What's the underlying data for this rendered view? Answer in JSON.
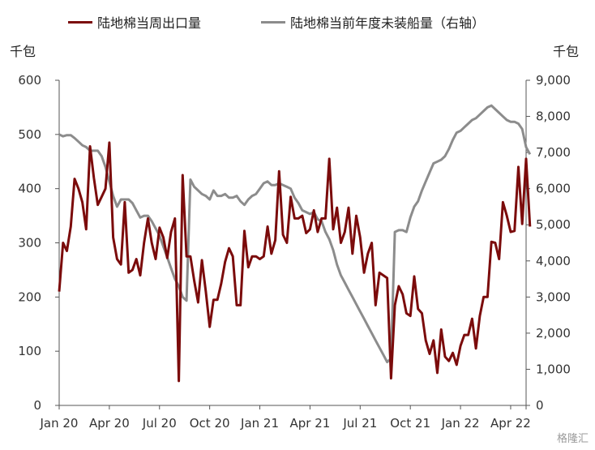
{
  "legend": {
    "series1": "陆地棉当周出口量",
    "series2": "陆地棉当前年度未装船量（右轴）"
  },
  "units": {
    "left": "千包",
    "right": "千包"
  },
  "watermark": "格隆汇",
  "colors": {
    "series1": "#7b0b0b",
    "series2": "#8c8c8c",
    "axis": "#555555"
  },
  "chart_data": {
    "type": "line",
    "x_ticks": [
      "Jan 20",
      "Apr 20",
      "Jul 20",
      "Oct 20",
      "Jan 21",
      "Apr 21",
      "Jul 21",
      "Oct 21",
      "Jan 22",
      "Apr 22"
    ],
    "x_range": [
      0,
      121
    ],
    "y_left": {
      "range": [
        0,
        600
      ],
      "ticks": [
        "0",
        "100",
        "200",
        "300",
        "400",
        "500",
        "600"
      ]
    },
    "y_right": {
      "range": [
        0,
        9000
      ],
      "ticks": [
        "0",
        "1,000",
        "2,000",
        "3,000",
        "4,000",
        "5,000",
        "6,000",
        "7,000",
        "8,000",
        "9,000"
      ]
    },
    "series": [
      {
        "name": "陆地棉当周出口量",
        "axis": "left",
        "x_unit": "week index from first week of Jan 2020",
        "values": [
          210,
          300,
          285,
          330,
          418,
          400,
          375,
          325,
          478,
          420,
          370,
          385,
          400,
          485,
          310,
          270,
          260,
          375,
          245,
          250,
          270,
          240,
          300,
          345,
          300,
          270,
          328,
          310,
          272,
          320,
          345,
          45,
          425,
          275,
          275,
          230,
          190,
          268,
          210,
          145,
          195,
          195,
          225,
          265,
          290,
          275,
          185,
          185,
          322,
          255,
          275,
          275,
          270,
          275,
          330,
          280,
          305,
          432,
          315,
          300,
          385,
          345,
          345,
          350,
          318,
          325,
          360,
          320,
          345,
          345,
          455,
          325,
          365,
          300,
          320,
          365,
          280,
          350,
          310,
          245,
          280,
          300,
          185,
          245,
          240,
          235,
          50,
          185,
          220,
          205,
          170,
          165,
          238,
          178,
          170,
          120,
          95,
          120,
          60,
          140,
          90,
          82,
          97,
          75,
          110,
          130,
          130,
          160,
          105,
          165,
          200,
          200,
          302,
          300,
          270,
          375,
          350,
          320,
          322,
          440,
          335,
          455,
          330
        ]
      },
      {
        "name": "陆地棉当前年度未装船量（右轴）",
        "axis": "right",
        "x_unit": "week index from first week of Jan 2020",
        "values": [
          7500,
          7450,
          7480,
          7480,
          7400,
          7300,
          7200,
          7150,
          7050,
          7050,
          7050,
          6900,
          6600,
          6200,
          5800,
          5500,
          5700,
          5700,
          5700,
          5600,
          5400,
          5200,
          5250,
          5250,
          5100,
          4900,
          4700,
          4400,
          4100,
          3800,
          3500,
          3300,
          3000,
          2900,
          6250,
          6050,
          5950,
          5850,
          5800,
          5700,
          5950,
          5800,
          5800,
          5850,
          5750,
          5750,
          5800,
          5650,
          5550,
          5700,
          5800,
          5850,
          6000,
          6150,
          6200,
          6100,
          6100,
          6150,
          6100,
          6050,
          6000,
          5750,
          5600,
          5400,
          5350,
          5300,
          5350,
          5150,
          5100,
          4800,
          4600,
          4300,
          3900,
          3600,
          3400,
          3200,
          3000,
          2800,
          2600,
          2400,
          2200,
          2000,
          1800,
          1600,
          1400,
          1200,
          1300,
          4800,
          4850,
          4850,
          4800,
          5200,
          5500,
          5650,
          5950,
          6200,
          6450,
          6700,
          6750,
          6800,
          6900,
          7100,
          7350,
          7550,
          7600,
          7700,
          7800,
          7900,
          7950,
          8050,
          8150,
          8250,
          8300,
          8200,
          8100,
          8000,
          7900,
          7850,
          7850,
          7800,
          7650,
          7150,
          6950
        ]
      }
    ]
  }
}
